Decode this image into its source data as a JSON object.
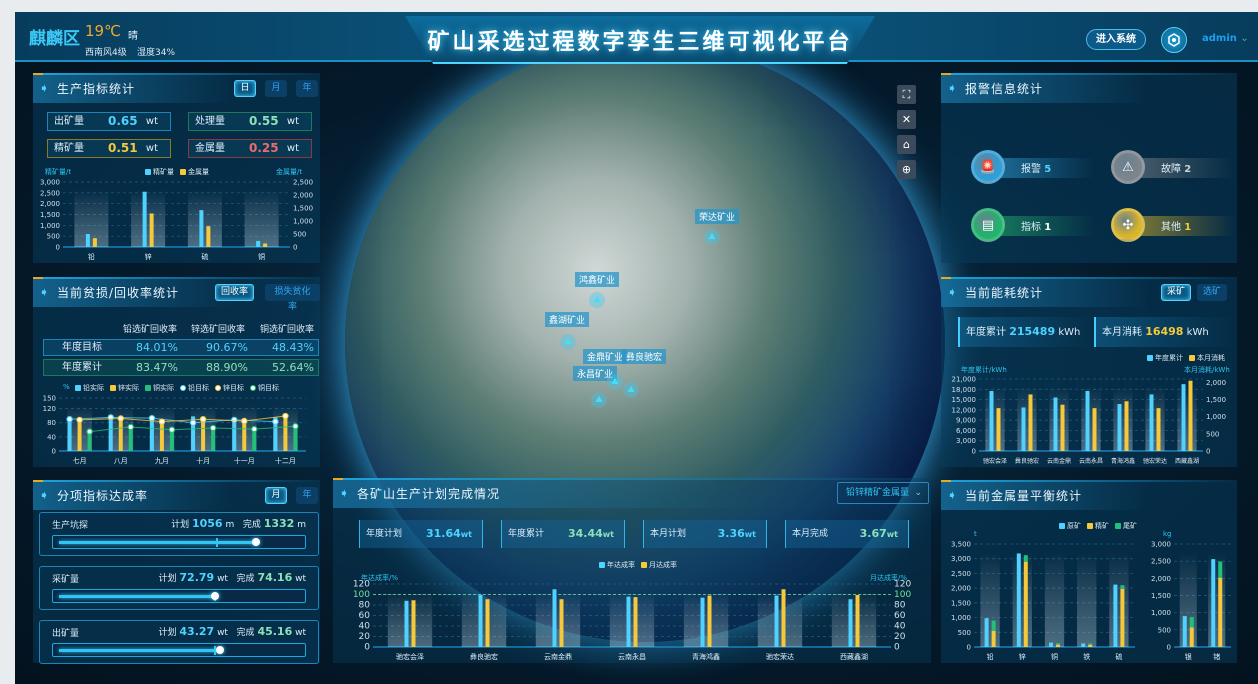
{
  "header": {
    "location": "麒麟区",
    "temperature": "19℃",
    "weather": "晴",
    "wind": "西南风4级",
    "humidity": "湿度34%",
    "title": "矿山采选过程数字孪生三维可视化平台",
    "enter_button": "进入系统",
    "settings_icon": "hexagon-gear-icon",
    "user": "admin"
  },
  "colors": {
    "cyan": "#4fd2ff",
    "yellow": "#f5c93a",
    "green": "#21c17a",
    "red": "#ef6a6a",
    "accent": "#1fa2d8"
  },
  "production": {
    "title": "生产指标统计",
    "tabs": [
      "日",
      "月",
      "年"
    ],
    "kpis": [
      {
        "label": "出矿量",
        "value": "0.65",
        "unit": "wt"
      },
      {
        "label": "处理量",
        "value": "0.55",
        "unit": "wt"
      },
      {
        "label": "精矿量",
        "value": "0.51",
        "unit": "wt"
      },
      {
        "label": "金属量",
        "value": "0.25",
        "unit": "wt"
      }
    ],
    "left_axis": "精矿量/t",
    "right_axis": "金属量/t",
    "legend": [
      "精矿量",
      "金属量"
    ]
  },
  "recovery": {
    "title": "当前贫损/回收率统计",
    "tabs": [
      "回收率",
      "损失贫化率"
    ],
    "columns": [
      "铅选矿回收率",
      "锌选矿回收率",
      "铜选矿回收率"
    ],
    "rows": [
      {
        "label": "年度目标",
        "values": [
          "84.01%",
          "90.67%",
          "48.43%"
        ]
      },
      {
        "label": "年度累计",
        "values": [
          "83.47%",
          "88.90%",
          "52.64%"
        ]
      }
    ],
    "unit": "%",
    "legend": [
      "铅实际",
      "锌实际",
      "铜实际",
      "铅目标",
      "锌目标",
      "铜目标"
    ]
  },
  "targets": {
    "title": "分项指标达成率",
    "tabs": [
      "月",
      "年"
    ],
    "plan_label": "计划",
    "done_label": "完成",
    "items": [
      {
        "name": "生产坑探",
        "plan": "1056",
        "done": "1332",
        "unit": "m",
        "plan_pct": 67,
        "done_pct": 83
      },
      {
        "name": "采矿量",
        "plan": "72.79",
        "done": "74.16",
        "unit": "wt",
        "plan_pct": 66,
        "done_pct": 66
      },
      {
        "name": "出矿量",
        "plan": "43.27",
        "done": "45.16",
        "unit": "wt",
        "plan_pct": 66,
        "done_pct": 68
      }
    ]
  },
  "alarms": {
    "title": "报警信息统计",
    "items": [
      {
        "label": "报警",
        "count": "5",
        "icon": "siren-icon",
        "color": "#2f9fd8"
      },
      {
        "label": "故障",
        "count": "2",
        "icon": "warning-icon",
        "color": "#7d858c"
      },
      {
        "label": "指标",
        "count": "1",
        "icon": "message-icon",
        "color": "#22b36c"
      },
      {
        "label": "其他",
        "count": "1",
        "icon": "grid-icon",
        "color": "#d9b52a"
      }
    ]
  },
  "energy": {
    "title": "当前能耗统计",
    "tabs": [
      "采矿",
      "选矿"
    ],
    "annual_label": "年度累计",
    "annual_value": "215489",
    "monthly_label": "本月消耗",
    "monthly_value": "16498",
    "unit": "kWh",
    "legend": [
      "年度累计",
      "本月消耗"
    ],
    "left_axis": "年度累计/kWh",
    "right_axis": "本月消耗/kWh"
  },
  "metal": {
    "title": "当前金属量平衡统计",
    "legend": [
      "原矿",
      "精矿",
      "尾矿"
    ],
    "left_unit": "t",
    "right_unit": "kg"
  },
  "plan": {
    "title": "各矿山生产计划完成情况",
    "dropdown": "铅锌精矿金属量",
    "kpis": [
      {
        "label": "年度计划",
        "value": "31.64",
        "unit": "wt"
      },
      {
        "label": "年度累计",
        "value": "34.44",
        "unit": "wt"
      },
      {
        "label": "本月计划",
        "value": "3.36",
        "unit": "wt"
      },
      {
        "label": "本月完成",
        "value": "3.67",
        "unit": "wt"
      }
    ],
    "legend": [
      "年达成率",
      "月达成率"
    ],
    "left_axis": "年达成率/%",
    "right_axis": "月达成率/%"
  },
  "map": {
    "markers": [
      "荣达矿业",
      "鸿鑫矿业",
      "鑫湖矿业",
      "金鼎矿业",
      "彝良驰宏",
      "永昌矿业"
    ],
    "tools": [
      "fullscreen-icon",
      "clear-icon",
      "home-icon",
      "globe-icon"
    ]
  },
  "chart_data": [
    {
      "type": "bar",
      "categories": [
        "铅",
        "锌",
        "硫",
        "铜"
      ],
      "ylim": [
        0,
        3000
      ],
      "yticks": [
        0,
        500,
        1000,
        1500,
        2000,
        2500,
        3000
      ],
      "ylim_right": [
        0,
        2500
      ],
      "yticks_right": [
        0,
        500,
        1000,
        1500,
        2000,
        2500
      ],
      "grid": true,
      "legend": "top",
      "series": [
        {
          "name": "精矿量",
          "axis": "left",
          "color": "#4fd2ff",
          "values": [
            600,
            2550,
            1700,
            280
          ]
        },
        {
          "name": "金属量",
          "axis": "right",
          "color": "#f5c93a",
          "values": [
            340,
            1290,
            800,
            135
          ]
        }
      ]
    },
    {
      "type": "bar",
      "categories": [
        "七月",
        "八月",
        "九月",
        "十月",
        "十一月",
        "十二月"
      ],
      "ylim": [
        0,
        150
      ],
      "yticks": [
        0,
        40,
        80,
        120,
        150
      ],
      "grid": true,
      "legend": "top",
      "series": [
        {
          "name": "铅实际",
          "color": "#4fd2ff",
          "values": [
            90,
            97,
            92,
            98,
            88,
            95
          ]
        },
        {
          "name": "锌实际",
          "color": "#f5c93a",
          "values": [
            88,
            93,
            83,
            90,
            85,
            100
          ]
        },
        {
          "name": "铜实际",
          "color": "#21c17a",
          "values": [
            55,
            68,
            60,
            65,
            62,
            70
          ]
        },
        {
          "name": "铅目标",
          "type": "line",
          "color": "#4fd2ff",
          "values": [
            90,
            95,
            93,
            80,
            88,
            83
          ]
        },
        {
          "name": "锌目标",
          "type": "line",
          "color": "#f5c93a",
          "values": [
            88,
            92,
            83,
            90,
            85,
            99
          ]
        },
        {
          "name": "铜目标",
          "type": "line",
          "color": "#21c17a",
          "values": [
            55,
            68,
            60,
            65,
            62,
            70
          ]
        }
      ]
    },
    {
      "type": "bar",
      "categories": [
        "驰宏会泽",
        "彝良驰宏",
        "云南金鼎",
        "云南永昌",
        "青海鸿鑫",
        "驰宏荣达",
        "西藏鑫湖"
      ],
      "ylim": [
        0,
        21000
      ],
      "yticks": [
        0,
        3000,
        6000,
        9000,
        12000,
        15000,
        18000,
        21000
      ],
      "ylim_right": [
        0,
        2100
      ],
      "yticks_right": [
        0,
        500,
        1000,
        1500,
        2000
      ],
      "grid": true,
      "legend": "top-right",
      "series": [
        {
          "name": "年度累计",
          "axis": "left",
          "color": "#4fd2ff",
          "values": [
            17500,
            12700,
            15600,
            17500,
            13700,
            16500,
            19500
          ]
        },
        {
          "name": "本月消耗",
          "axis": "right",
          "color": "#f5c93a",
          "values": [
            1250,
            1650,
            1350,
            1250,
            1450,
            1250,
            2050
          ]
        }
      ]
    },
    {
      "type": "bar",
      "categories": [
        "驰宏会泽",
        "彝良驰宏",
        "云南金鼎",
        "云南永昌",
        "青海鸿鑫",
        "驰宏荣达",
        "西藏鑫湖"
      ],
      "ylim": [
        0,
        120
      ],
      "yticks": [
        0,
        20,
        40,
        60,
        80,
        100,
        120
      ],
      "ylim_right": [
        0,
        120
      ],
      "yticks_right": [
        0,
        20,
        40,
        60,
        80,
        100,
        120
      ],
      "ref_line": 100,
      "grid": true,
      "legend": "top",
      "series": [
        {
          "name": "年达成率",
          "axis": "left",
          "color": "#4fd2ff",
          "values": [
            88,
            99,
            110,
            96,
            94,
            98,
            91
          ]
        },
        {
          "name": "月达成率",
          "axis": "right",
          "color": "#f5c93a",
          "values": [
            89,
            91,
            91,
            95,
            98,
            110,
            99
          ]
        }
      ]
    },
    {
      "type": "bar",
      "unit": "t",
      "categories": [
        "铅",
        "锌",
        "铜",
        "铁",
        "硫"
      ],
      "ylim": [
        0,
        3500
      ],
      "yticks": [
        0,
        500,
        1000,
        1500,
        2000,
        2500,
        3000,
        3500
      ],
      "grid": true,
      "stacked": "精矿+尾矿",
      "series": [
        {
          "name": "原矿",
          "color": "#4fd2ff",
          "values": [
            980,
            3180,
            150,
            120,
            2120
          ]
        },
        {
          "name": "精矿",
          "color": "#f5c93a",
          "stack": "s",
          "values": [
            550,
            2900,
            80,
            80,
            1980
          ]
        },
        {
          "name": "尾矿",
          "color": "#21c17a",
          "stack": "s",
          "values": [
            350,
            220,
            50,
            40,
            120
          ]
        }
      ]
    },
    {
      "type": "bar",
      "unit": "kg",
      "categories": [
        "银",
        "锗"
      ],
      "ylim": [
        0,
        3000
      ],
      "yticks": [
        0,
        500,
        1000,
        1500,
        2000,
        2500,
        3000
      ],
      "grid": true,
      "stacked": "精矿+尾矿",
      "series": [
        {
          "name": "原矿",
          "color": "#4fd2ff",
          "values": [
            900,
            2560
          ]
        },
        {
          "name": "精矿",
          "color": "#f5c93a",
          "stack": "s",
          "values": [
            570,
            2020
          ]
        },
        {
          "name": "尾矿",
          "color": "#21c17a",
          "stack": "s",
          "values": [
            300,
            470
          ]
        }
      ]
    }
  ]
}
